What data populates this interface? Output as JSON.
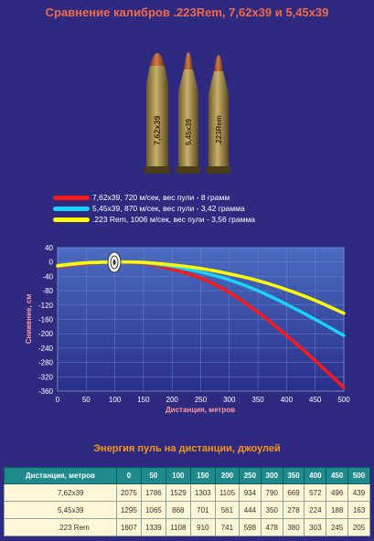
{
  "title": "Сравнение калибров .223Rem, 7,62x39 и 5,45x39",
  "cartridge_labels": [
    "7,62x39",
    "5,45x39",
    ".223Rem"
  ],
  "legend": [
    {
      "label": "7,62x39, 720 м/сек, вес пули - 8 грамм",
      "color": "#ff1a1a"
    },
    {
      "label": "5,45x39, 870 м/сек, вес пули - 3,42 грамма",
      "color": "#19d2ff"
    },
    {
      "label": ".223 Rem, 1006 м/сек, вес пули - 3,56 грамма",
      "color": "#ffff00"
    }
  ],
  "chart_data": {
    "type": "line",
    "xlabel": "Дистанция, метров",
    "ylabel": "Снижение, см",
    "xlim": [
      0,
      500
    ],
    "ylim": [
      -360,
      40
    ],
    "xticks": [
      0,
      50,
      100,
      150,
      200,
      250,
      300,
      350,
      400,
      450,
      500
    ],
    "yticks": [
      40,
      0,
      -40,
      -80,
      -120,
      -160,
      -200,
      -240,
      -280,
      -320,
      -360
    ],
    "grid": true,
    "series": [
      {
        "name": "7,62x39",
        "color": "#ff1a1a",
        "x": [
          0,
          50,
          100,
          150,
          200,
          250,
          300,
          350,
          400,
          450,
          500
        ],
        "y": [
          -15,
          -5,
          0,
          -4,
          -20,
          -45,
          -85,
          -140,
          -205,
          -275,
          -350
        ]
      },
      {
        "name": "5,45x39",
        "color": "#19d2ff",
        "x": [
          0,
          50,
          100,
          150,
          200,
          250,
          300,
          350,
          400,
          450,
          500
        ],
        "y": [
          -12,
          -3,
          0,
          -2,
          -12,
          -28,
          -50,
          -80,
          -118,
          -160,
          -205
        ]
      },
      {
        "name": ".223 Rem",
        "color": "#ffff00",
        "x": [
          0,
          50,
          100,
          150,
          200,
          250,
          300,
          350,
          400,
          450,
          500
        ],
        "y": [
          -10,
          -2,
          0,
          -1,
          -8,
          -18,
          -33,
          -52,
          -77,
          -107,
          -143
        ]
      }
    ]
  },
  "energy": {
    "title": "Энергия пуль на дистанции, джоулей",
    "header": [
      "Дистанция, метров",
      "0",
      "50",
      "100",
      "150",
      "200",
      "250",
      "300",
      "350",
      "400",
      "450",
      "500"
    ],
    "rows": [
      {
        "name": "7,62x39",
        "values": [
          "2075",
          "1786",
          "1529",
          "1303",
          "1105",
          "934",
          "790",
          "669",
          "572",
          "496",
          "439"
        ]
      },
      {
        "name": "5,45x39",
        "values": [
          "1295",
          "1065",
          "868",
          "701",
          "561",
          "444",
          "350",
          "278",
          "224",
          "188",
          "163"
        ]
      },
      {
        "name": ".223 Rem",
        "values": [
          "1607",
          "1339",
          "1108",
          "910",
          "741",
          "598",
          "478",
          "380",
          "303",
          "245",
          "205"
        ]
      }
    ]
  }
}
